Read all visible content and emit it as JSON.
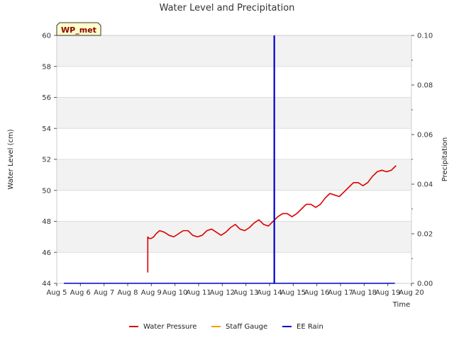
{
  "chart_data": {
    "type": "line",
    "title": "Water Level and Precipitation",
    "badge": "WP_met",
    "xlabel": "Time",
    "ylabel": "Water Level (cm)",
    "y2label": "Precipitation",
    "x_day_range": [
      5,
      20
    ],
    "xticks": [
      {
        "day": 5,
        "label": "Aug 5"
      },
      {
        "day": 6,
        "label": "Aug 6"
      },
      {
        "day": 7,
        "label": "Aug 7"
      },
      {
        "day": 8,
        "label": "Aug 8"
      },
      {
        "day": 9,
        "label": "Aug 9"
      },
      {
        "day": 10,
        "label": "Aug 10"
      },
      {
        "day": 11,
        "label": "Aug 11"
      },
      {
        "day": 12,
        "label": "Aug 12"
      },
      {
        "day": 13,
        "label": "Aug 13"
      },
      {
        "day": 14,
        "label": "Aug 14"
      },
      {
        "day": 15,
        "label": "Aug 15"
      },
      {
        "day": 16,
        "label": "Aug 16"
      },
      {
        "day": 17,
        "label": "Aug 17"
      },
      {
        "day": 18,
        "label": "Aug 18"
      },
      {
        "day": 19,
        "label": "Aug 19"
      },
      {
        "day": 20,
        "label": "Aug 20"
      }
    ],
    "ylim": [
      44,
      60
    ],
    "yticks": [
      "44",
      "46",
      "48",
      "50",
      "52",
      "54",
      "56",
      "58",
      "60"
    ],
    "y2lim": [
      0,
      0.1
    ],
    "y2ticks": [
      "0.00",
      "0.02",
      "0.04",
      "0.06",
      "0.08",
      "0.10"
    ],
    "series": [
      {
        "name": "Water Pressure",
        "color": "#dd0000",
        "points": [
          [
            8.85,
            44.7
          ],
          [
            8.85,
            47.0
          ],
          [
            8.9,
            46.9
          ],
          [
            9.0,
            46.9
          ],
          [
            9.1,
            47.0
          ],
          [
            9.2,
            47.2
          ],
          [
            9.35,
            47.4
          ],
          [
            9.55,
            47.3
          ],
          [
            9.75,
            47.1
          ],
          [
            9.95,
            47.0
          ],
          [
            10.15,
            47.2
          ],
          [
            10.35,
            47.4
          ],
          [
            10.55,
            47.4
          ],
          [
            10.75,
            47.1
          ],
          [
            10.95,
            47.0
          ],
          [
            11.15,
            47.1
          ],
          [
            11.35,
            47.4
          ],
          [
            11.55,
            47.5
          ],
          [
            11.75,
            47.3
          ],
          [
            11.95,
            47.1
          ],
          [
            12.15,
            47.3
          ],
          [
            12.35,
            47.6
          ],
          [
            12.55,
            47.8
          ],
          [
            12.75,
            47.5
          ],
          [
            12.95,
            47.4
          ],
          [
            13.15,
            47.6
          ],
          [
            13.35,
            47.9
          ],
          [
            13.55,
            48.1
          ],
          [
            13.75,
            47.8
          ],
          [
            13.95,
            47.7
          ],
          [
            14.15,
            48.0
          ],
          [
            14.35,
            48.3
          ],
          [
            14.55,
            48.5
          ],
          [
            14.75,
            48.5
          ],
          [
            14.95,
            48.3
          ],
          [
            15.15,
            48.5
          ],
          [
            15.35,
            48.8
          ],
          [
            15.55,
            49.1
          ],
          [
            15.75,
            49.1
          ],
          [
            15.95,
            48.9
          ],
          [
            16.15,
            49.1
          ],
          [
            16.35,
            49.5
          ],
          [
            16.55,
            49.8
          ],
          [
            16.75,
            49.7
          ],
          [
            16.95,
            49.6
          ],
          [
            17.15,
            49.9
          ],
          [
            17.35,
            50.2
          ],
          [
            17.55,
            50.5
          ],
          [
            17.75,
            50.5
          ],
          [
            17.95,
            50.3
          ],
          [
            18.15,
            50.5
          ],
          [
            18.35,
            50.9
          ],
          [
            18.55,
            51.2
          ],
          [
            18.75,
            51.3
          ],
          [
            18.95,
            51.2
          ],
          [
            19.15,
            51.3
          ],
          [
            19.35,
            51.6
          ]
        ]
      },
      {
        "name": "Staff Gauge",
        "color": "#f0a000",
        "points": []
      },
      {
        "name": "EE Rain",
        "color": "#0000cc",
        "axis": "y2",
        "baseline": [
          [
            5.3,
            0.0
          ],
          [
            19.3,
            0.0
          ]
        ],
        "spikes": [
          {
            "day": 14.2,
            "value": 0.1
          }
        ]
      }
    ],
    "legend": [
      "Water Pressure",
      "Staff Gauge",
      "EE Rain"
    ],
    "legend_position": "bottom-center"
  }
}
